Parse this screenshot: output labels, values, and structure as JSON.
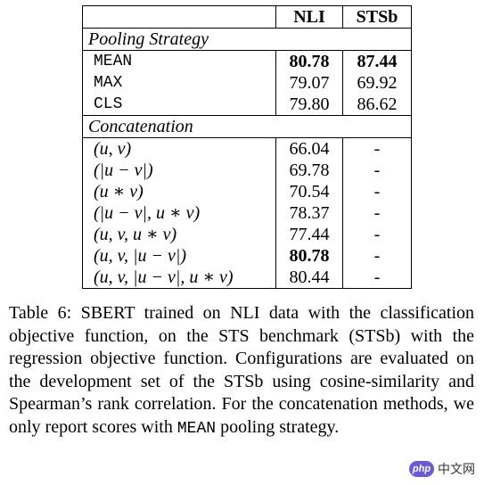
{
  "table": {
    "headers": [
      "NLI",
      "STSb"
    ],
    "sections": [
      {
        "title": "Pooling Strategy",
        "rows": [
          {
            "label": "MEAN",
            "nli": "80.78",
            "sts": "87.44",
            "bold_nli": true,
            "bold_sts": true
          },
          {
            "label": "MAX",
            "nli": "79.07",
            "sts": "69.92"
          },
          {
            "label": "CLS",
            "nli": "79.80",
            "sts": "86.62"
          }
        ]
      },
      {
        "title": "Concatenation",
        "rows": [
          {
            "label": "(u, v)",
            "nli": "66.04",
            "sts": "-"
          },
          {
            "label": "(|u − v|)",
            "nli": "69.78",
            "sts": "-"
          },
          {
            "label": "(u ∗ v)",
            "nli": "70.54",
            "sts": "-"
          },
          {
            "label": "(|u − v|, u ∗ v)",
            "nli": "78.37",
            "sts": "-"
          },
          {
            "label": "(u, v, u ∗ v)",
            "nli": "77.44",
            "sts": "-"
          },
          {
            "label": "(u, v, |u − v|)",
            "nli": "80.78",
            "sts": "-",
            "bold_nli": true
          },
          {
            "label": "(u, v, |u − v|, u ∗ v)",
            "nli": "80.44",
            "sts": "-"
          }
        ]
      }
    ]
  },
  "caption": {
    "text_before": "Table 6: SBERT trained on NLI data with the classification objective function, on the STS benchmark (STSb) with the regression objective function. Configurations are evaluated on the development set of the STSb using cosine-similarity and Spearman’s rank correlation. For the concatenation methods, we only report scores with ",
    "mono_word": "MEAN",
    "text_after": " pooling strategy."
  },
  "watermark": {
    "logo": "php",
    "text": "中文网"
  }
}
